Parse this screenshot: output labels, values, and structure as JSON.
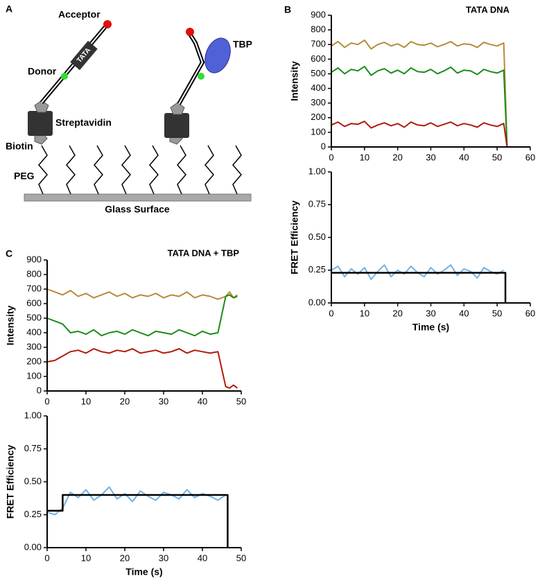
{
  "diagram": {
    "panel": "A",
    "labels": {
      "acceptor": "Acceptor",
      "tata": "TATA",
      "donor": "Donor",
      "tbp": "TBP",
      "streptavidin": "Streptavidin",
      "biotin": "Biotin",
      "peg": "PEG",
      "surface": "Glass Surface"
    }
  },
  "chart_data": [
    {
      "type": "line",
      "panel": "B",
      "title": "TATA DNA",
      "ylabel": "Intensity",
      "xlim": [
        0,
        60
      ],
      "xticks": [
        0,
        10,
        20,
        30,
        40,
        50,
        60
      ],
      "ylim": [
        0,
        900
      ],
      "yticks": [
        0,
        100,
        200,
        300,
        400,
        500,
        600,
        700,
        800,
        900
      ],
      "series": [
        {
          "color": "#b8893a",
          "x": [
            0,
            2,
            4,
            6,
            8,
            10,
            12,
            14,
            16,
            18,
            20,
            22,
            24,
            26,
            28,
            30,
            32,
            34,
            36,
            38,
            40,
            42,
            44,
            46,
            48,
            50,
            52,
            53
          ],
          "values": [
            690,
            720,
            680,
            710,
            700,
            730,
            670,
            700,
            715,
            690,
            705,
            680,
            720,
            700,
            695,
            710,
            685,
            700,
            720,
            690,
            705,
            700,
            680,
            715,
            700,
            690,
            710,
            10
          ]
        },
        {
          "color": "#1a8c1a",
          "x": [
            0,
            2,
            4,
            6,
            8,
            10,
            12,
            14,
            16,
            18,
            20,
            22,
            24,
            26,
            28,
            30,
            32,
            34,
            36,
            38,
            40,
            42,
            44,
            46,
            48,
            50,
            52,
            53
          ],
          "values": [
            510,
            540,
            500,
            530,
            520,
            550,
            490,
            520,
            535,
            505,
            525,
            500,
            540,
            515,
            510,
            530,
            500,
            520,
            545,
            505,
            525,
            520,
            495,
            530,
            515,
            505,
            525,
            5
          ]
        },
        {
          "color": "#b01a0a",
          "x": [
            0,
            2,
            4,
            6,
            8,
            10,
            12,
            14,
            16,
            18,
            20,
            22,
            24,
            26,
            28,
            30,
            32,
            34,
            36,
            38,
            40,
            42,
            44,
            46,
            48,
            50,
            52,
            53
          ],
          "values": [
            150,
            170,
            140,
            160,
            155,
            175,
            130,
            150,
            165,
            145,
            160,
            135,
            170,
            150,
            145,
            165,
            140,
            155,
            170,
            145,
            160,
            150,
            135,
            165,
            150,
            140,
            160,
            0
          ]
        }
      ]
    },
    {
      "type": "line",
      "ylabel": "FRET  Efficiency",
      "xlabel": "Time (s)",
      "xlim": [
        0,
        60
      ],
      "xticks": [
        0,
        10,
        20,
        30,
        40,
        50,
        60
      ],
      "ylim": [
        0,
        1
      ],
      "yticks": [
        {
          "value": 0,
          "label": "0.00"
        },
        0.25,
        {
          "value": 0.5,
          "label": "0.50"
        },
        0.75,
        {
          "value": 1,
          "label": "1.00"
        }
      ],
      "series": [
        {
          "color": "#6fb3ea",
          "x": [
            0,
            2,
            4,
            6,
            8,
            10,
            12,
            14,
            16,
            18,
            20,
            22,
            24,
            26,
            28,
            30,
            32,
            34,
            36,
            38,
            40,
            42,
            44,
            46,
            48,
            50,
            52
          ],
          "values": [
            0.25,
            0.28,
            0.2,
            0.26,
            0.22,
            0.27,
            0.18,
            0.24,
            0.29,
            0.2,
            0.25,
            0.22,
            0.28,
            0.23,
            0.2,
            0.27,
            0.22,
            0.25,
            0.29,
            0.21,
            0.26,
            0.24,
            0.19,
            0.27,
            0.24,
            0.22,
            0.25
          ]
        },
        {
          "color": "#000000",
          "x": [
            0,
            52.5,
            52.5
          ],
          "values": [
            0.23,
            0.23,
            0
          ]
        }
      ]
    },
    {
      "type": "line",
      "panel": "C",
      "title": "TATA DNA + TBP",
      "ylabel": "Intensity",
      "xlim": [
        0,
        50
      ],
      "xticks": [
        0,
        10,
        20,
        30,
        40,
        50
      ],
      "ylim": [
        0,
        900
      ],
      "yticks": [
        0,
        100,
        200,
        300,
        400,
        500,
        600,
        700,
        800,
        900
      ],
      "series": [
        {
          "color": "#b8893a",
          "x": [
            0,
            2,
            4,
            6,
            8,
            10,
            12,
            14,
            16,
            18,
            20,
            22,
            24,
            26,
            28,
            30,
            32,
            34,
            36,
            38,
            40,
            42,
            44,
            46,
            47,
            48,
            49
          ],
          "values": [
            700,
            680,
            660,
            690,
            650,
            670,
            640,
            660,
            680,
            650,
            670,
            640,
            660,
            650,
            670,
            640,
            660,
            650,
            680,
            640,
            660,
            650,
            630,
            650,
            680,
            640,
            660
          ]
        },
        {
          "color": "#1a8c1a",
          "x": [
            0,
            2,
            4,
            6,
            8,
            10,
            12,
            14,
            16,
            18,
            20,
            22,
            24,
            26,
            28,
            30,
            32,
            34,
            36,
            38,
            40,
            42,
            44,
            46,
            47,
            48,
            49
          ],
          "values": [
            500,
            480,
            460,
            400,
            410,
            390,
            420,
            380,
            400,
            410,
            390,
            420,
            400,
            380,
            410,
            400,
            390,
            420,
            400,
            380,
            410,
            390,
            400,
            650,
            660,
            640,
            650
          ]
        },
        {
          "color": "#b01a0a",
          "x": [
            0,
            2,
            4,
            6,
            8,
            10,
            12,
            14,
            16,
            18,
            20,
            22,
            24,
            26,
            28,
            30,
            32,
            34,
            36,
            38,
            40,
            42,
            44,
            46,
            47,
            48,
            49
          ],
          "values": [
            200,
            210,
            240,
            270,
            280,
            260,
            290,
            270,
            260,
            280,
            270,
            290,
            260,
            270,
            280,
            260,
            270,
            290,
            260,
            280,
            270,
            260,
            270,
            30,
            20,
            40,
            20
          ]
        }
      ]
    },
    {
      "type": "line",
      "ylabel": "FRET  Efficiency",
      "xlabel": "Time (s)",
      "xlim": [
        0,
        50
      ],
      "xticks": [
        0,
        10,
        20,
        30,
        40,
        50
      ],
      "ylim": [
        0,
        1
      ],
      "yticks": [
        {
          "value": 0,
          "label": "0.00"
        },
        0.25,
        {
          "value": 0.5,
          "label": "0.50"
        },
        0.75,
        {
          "value": 1,
          "label": "1.00"
        }
      ],
      "series": [
        {
          "color": "#6fb3ea",
          "x": [
            0,
            2,
            4,
            6,
            8,
            10,
            12,
            14,
            16,
            18,
            20,
            22,
            24,
            26,
            28,
            30,
            32,
            34,
            36,
            38,
            40,
            42,
            44,
            46
          ],
          "values": [
            0.27,
            0.25,
            0.3,
            0.42,
            0.38,
            0.44,
            0.36,
            0.4,
            0.46,
            0.37,
            0.41,
            0.35,
            0.43,
            0.39,
            0.36,
            0.42,
            0.4,
            0.37,
            0.44,
            0.38,
            0.41,
            0.39,
            0.36,
            0.4
          ]
        },
        {
          "color": "#000000",
          "x": [
            0,
            4,
            4,
            46.5,
            46.5
          ],
          "values": [
            0.28,
            0.28,
            0.4,
            0.4,
            0
          ]
        }
      ]
    }
  ]
}
